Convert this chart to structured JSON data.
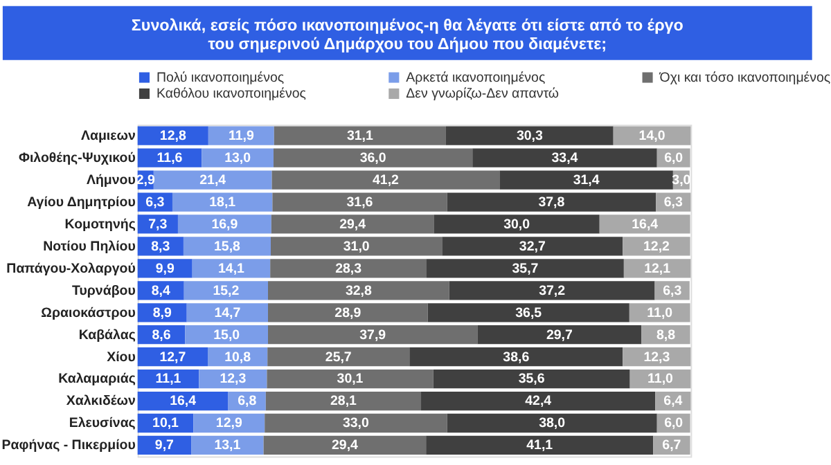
{
  "chart_data": {
    "type": "bar",
    "orientation": "horizontal",
    "stacked": true,
    "data_labels": true,
    "legend": "top",
    "tick_labels": "y",
    "title": "Συνολικά, εσείς πόσο ικανοποιημένος-η θα λέγατε ότι είστε από το έργο\nτου σημερινού Δημάρχου του Δήμου που διαμένετε;",
    "categories": [
      "Λαμιεων",
      "Φιλοθέης-Ψυχικού",
      "Λήμνου",
      "Αγίου Δημητρίου",
      "Κομοτηνής",
      "Νοτίου Πηλίου",
      "Παπάγου-Χολαργού",
      "Τυρνάβου",
      "Ωραιοκάστρου",
      "Καβάλας",
      "Χίου",
      "Καλαμαριάς",
      "Χαλκιδέων",
      "Ελευσίνας",
      "Ραφήνας - Πικερμίου"
    ],
    "series": [
      {
        "name": "Πολύ ικανοποιημένος",
        "color": "#2f5fe3",
        "values": [
          12.8,
          11.6,
          2.9,
          6.3,
          7.3,
          8.3,
          9.9,
          8.4,
          8.9,
          8.6,
          12.7,
          11.1,
          16.4,
          10.1,
          9.7
        ],
        "value_labels": [
          "12,8",
          "11,6",
          "2,9",
          "6,3",
          "7,3",
          "8,3",
          "9,9",
          "8,4",
          "8,9",
          "8,6",
          "12,7",
          "11,1",
          "16,4",
          "10,1",
          "9,7"
        ]
      },
      {
        "name": "Αρκετά ικανοποιημένος",
        "color": "#7b9de9",
        "values": [
          11.9,
          13.0,
          21.4,
          18.1,
          16.9,
          15.8,
          14.1,
          15.2,
          14.7,
          15.0,
          10.8,
          12.3,
          6.8,
          12.9,
          13.1
        ],
        "value_labels": [
          "11,9",
          "13,0",
          "21,4",
          "18,1",
          "16,9",
          "15,8",
          "14,1",
          "15,2",
          "14,7",
          "15,0",
          "10,8",
          "12,3",
          "6,8",
          "12,9",
          "13,1"
        ]
      },
      {
        "name": "Όχι και τόσο ικανοποιημένος",
        "color": "#6f6f6f",
        "values": [
          31.1,
          36.0,
          41.2,
          31.6,
          29.4,
          31.0,
          28.3,
          32.8,
          28.9,
          37.9,
          25.7,
          30.1,
          28.1,
          33.0,
          29.4
        ],
        "value_labels": [
          "31,1",
          "36,0",
          "41,2",
          "31,6",
          "29,4",
          "31,0",
          "28,3",
          "32,8",
          "28,9",
          "37,9",
          "25,7",
          "30,1",
          "28,1",
          "33,0",
          "29,4"
        ]
      },
      {
        "name": "Καθόλου ικανοποιημένος",
        "color": "#404040",
        "values": [
          30.3,
          33.4,
          31.4,
          37.8,
          30.0,
          32.7,
          35.7,
          37.2,
          36.5,
          29.7,
          38.6,
          35.6,
          42.4,
          38.0,
          41.1
        ],
        "value_labels": [
          "30,3",
          "33,4",
          "31,4",
          "37,8",
          "30,0",
          "32,7",
          "35,7",
          "37,2",
          "36,5",
          "29,7",
          "38,6",
          "35,6",
          "42,4",
          "38,0",
          "41,1"
        ]
      },
      {
        "name": "Δεν γνωρίζω-Δεν απαντώ",
        "color": "#a9a9a9",
        "values": [
          14.0,
          6.0,
          3.0,
          6.3,
          16.4,
          12.2,
          12.1,
          6.3,
          11.0,
          8.8,
          12.3,
          11.0,
          6.4,
          6.0,
          6.7
        ],
        "value_labels": [
          "14,0",
          "6,0",
          "3,0",
          "6,3",
          "16,4",
          "12,2",
          "12,1",
          "6,3",
          "11,0",
          "8,8",
          "12,3",
          "11,0",
          "6,4",
          "6,0",
          "6,7"
        ]
      }
    ]
  }
}
